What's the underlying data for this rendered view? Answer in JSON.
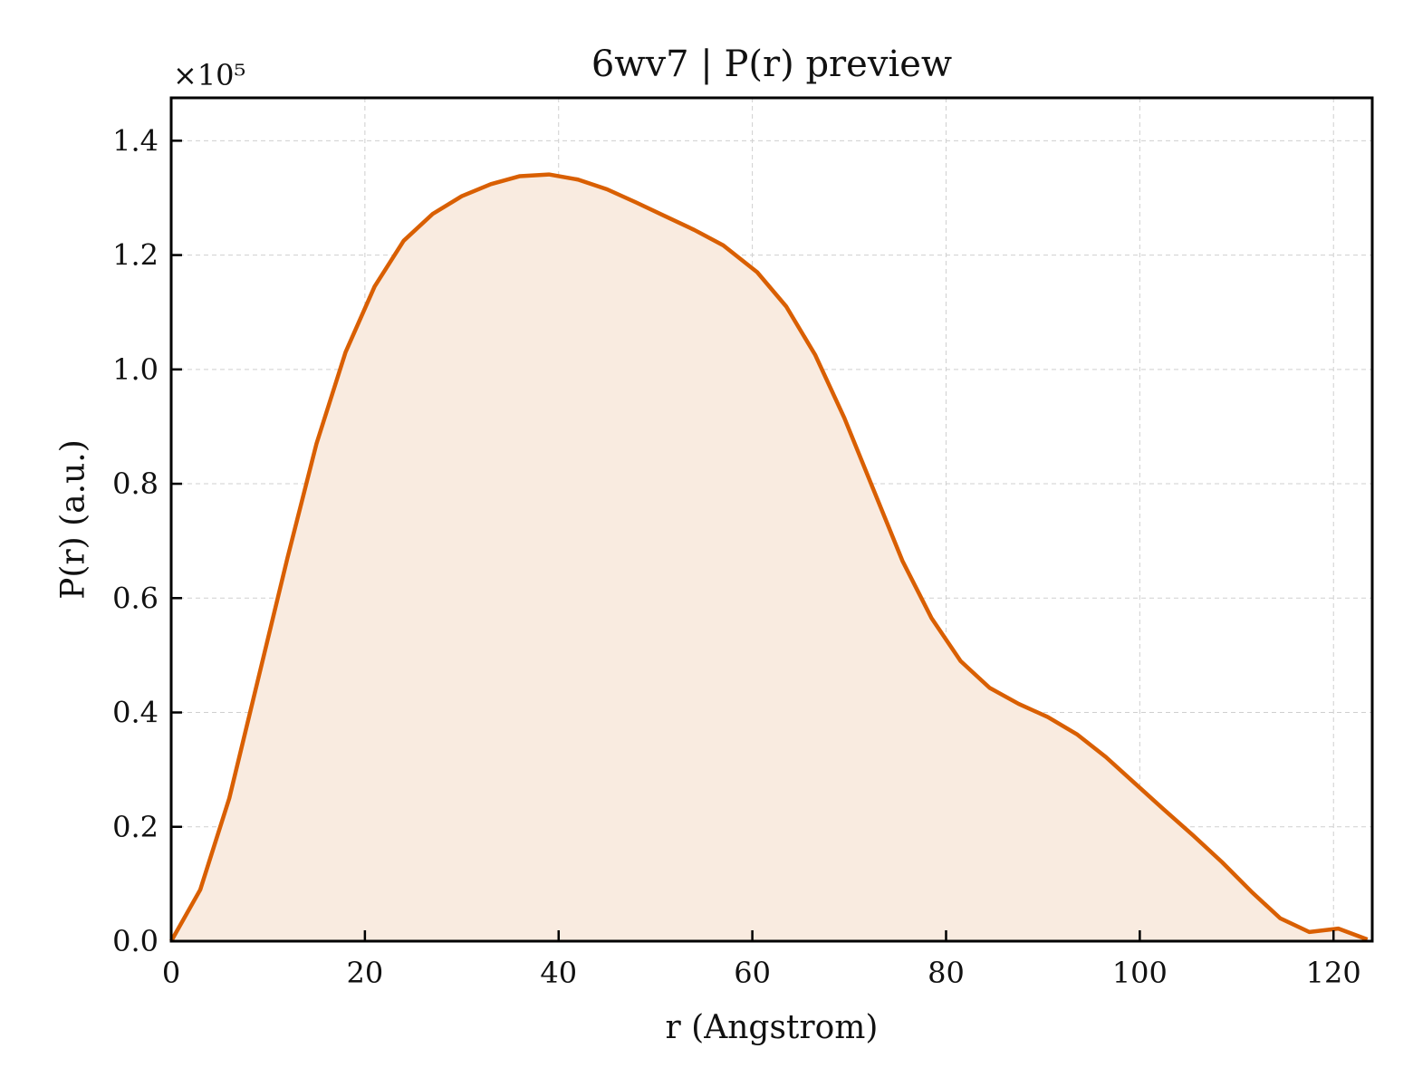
{
  "chart_data": {
    "type": "area",
    "title": "6wv7 | P(r) preview",
    "xlabel": "r (Angstrom)",
    "ylabel": "P(r) (a.u.)",
    "y_multiplier_label": "×10⁵",
    "xlim": [
      0,
      124
    ],
    "ylim": [
      0,
      1.475
    ],
    "x_ticks": [
      0,
      20,
      40,
      60,
      80,
      100,
      120
    ],
    "y_ticks": [
      0.0,
      0.2,
      0.4,
      0.6,
      0.8,
      1.0,
      1.2,
      1.4
    ],
    "y_tick_labels": [
      "0.0",
      "0.2",
      "0.4",
      "0.6",
      "0.8",
      "1.0",
      "1.2",
      "1.4"
    ],
    "grid": true,
    "line_color": "#d95f02",
    "fill_color": "#f9ebe0",
    "series": [
      {
        "x": [
          0,
          3,
          6,
          9,
          12,
          15,
          18,
          21,
          24,
          27,
          30,
          33,
          36,
          39,
          42,
          45,
          48,
          51,
          54,
          57,
          60.5,
          63.5,
          66.5,
          69.5,
          72.5,
          75.5,
          78.5,
          81.5,
          84.5,
          87.5,
          90.5,
          93.5,
          96.5,
          99.5,
          102.5,
          105.5,
          108.5,
          111.5,
          114.5,
          117.5,
          120.5,
          123.5
        ],
        "y": [
          0.0,
          0.09,
          0.25,
          0.46,
          0.67,
          0.87,
          1.03,
          1.145,
          1.225,
          1.272,
          1.303,
          1.324,
          1.338,
          1.341,
          1.332,
          1.315,
          1.292,
          1.268,
          1.244,
          1.217,
          1.17,
          1.11,
          1.025,
          0.915,
          0.79,
          0.665,
          0.565,
          0.49,
          0.443,
          0.415,
          0.392,
          0.362,
          0.322,
          0.276,
          0.23,
          0.185,
          0.138,
          0.087,
          0.04,
          0.016,
          0.022,
          0.003
        ]
      }
    ]
  }
}
